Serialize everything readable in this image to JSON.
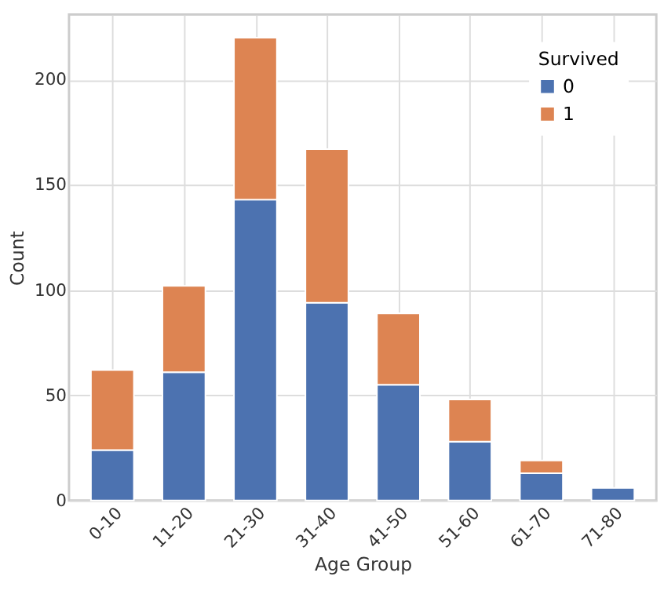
{
  "chart_data": {
    "type": "bar",
    "stacked": true,
    "xlabel": "Age Group",
    "ylabel": "Count",
    "legend_title": "Survived",
    "legend": "top right",
    "grid": true,
    "categories": [
      "0-10",
      "11-20",
      "21-30",
      "31-40",
      "41-50",
      "51-60",
      "61-70",
      "71-80"
    ],
    "series": [
      {
        "name": "0",
        "color": "#4c72b0",
        "values": [
          24,
          61,
          143,
          94,
          55,
          28,
          13,
          6
        ]
      },
      {
        "name": "1",
        "color": "#dd8452",
        "values": [
          38,
          41,
          77,
          73,
          34,
          20,
          6,
          null
        ]
      }
    ],
    "ylim": [
      0,
      231
    ],
    "yticks": [
      0,
      50,
      100,
      150,
      200
    ]
  }
}
